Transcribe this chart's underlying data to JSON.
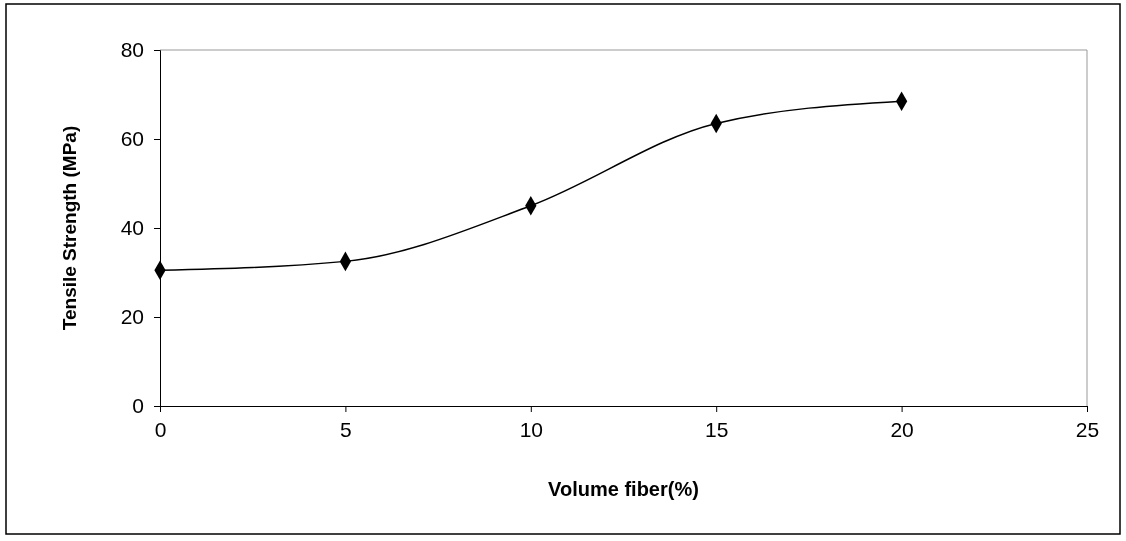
{
  "chart_data": {
    "type": "line",
    "xlabel": "Volume fiber(%)",
    "ylabel": "Tensile Strength (MPa)",
    "x": [
      0,
      5,
      10,
      15,
      20
    ],
    "series": [
      {
        "color": "#000000",
        "values": [
          30.5,
          32.5,
          45,
          63.5,
          68.5
        ]
      }
    ],
    "xlim": [
      0,
      25
    ],
    "xticks": [
      0,
      5,
      10,
      15,
      20,
      25
    ],
    "ylim": [
      0,
      80
    ],
    "yticks": [
      0,
      20,
      40,
      60,
      80
    ],
    "grid": false,
    "marker": "diamond",
    "line_style": "solid"
  }
}
